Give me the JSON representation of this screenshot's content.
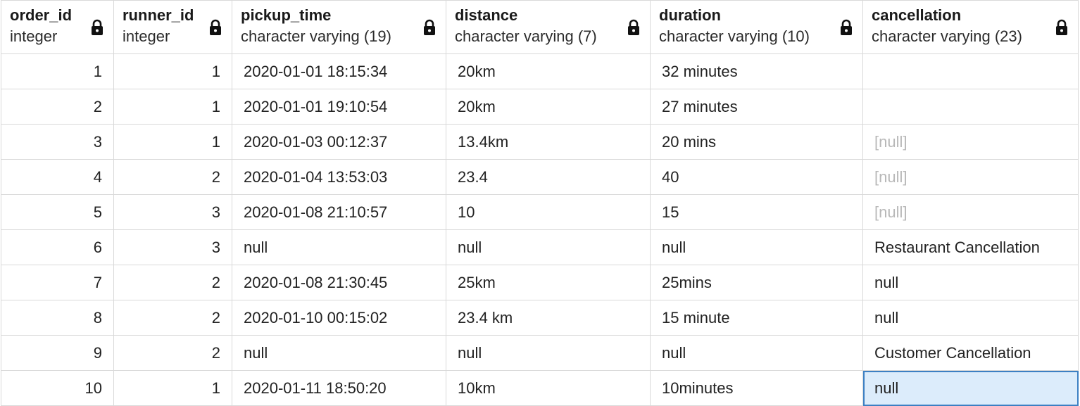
{
  "columns": [
    {
      "name": "order_id",
      "type": "integer"
    },
    {
      "name": "runner_id",
      "type": "integer"
    },
    {
      "name": "pickup_time",
      "type": "character varying (19)"
    },
    {
      "name": "distance",
      "type": "character varying (7)"
    },
    {
      "name": "duration",
      "type": "character varying (10)"
    },
    {
      "name": "cancellation",
      "type": "character varying (23)"
    }
  ],
  "lock_icon": "lock-icon",
  "null_placeholder_color": "#b8b8b8",
  "selection_color": "#dcecfb",
  "rows": [
    {
      "order_id": "1",
      "runner_id": "1",
      "pickup_time": "2020-01-01 18:15:34",
      "distance": "20km",
      "duration": "32 minutes",
      "cancellation": ""
    },
    {
      "order_id": "2",
      "runner_id": "1",
      "pickup_time": "2020-01-01 19:10:54",
      "distance": "20km",
      "duration": "27 minutes",
      "cancellation": ""
    },
    {
      "order_id": "3",
      "runner_id": "1",
      "pickup_time": "2020-01-03 00:12:37",
      "distance": "13.4km",
      "duration": "20 mins",
      "cancellation": "[null]"
    },
    {
      "order_id": "4",
      "runner_id": "2",
      "pickup_time": "2020-01-04 13:53:03",
      "distance": "23.4",
      "duration": "40",
      "cancellation": "[null]"
    },
    {
      "order_id": "5",
      "runner_id": "3",
      "pickup_time": "2020-01-08 21:10:57",
      "distance": "10",
      "duration": "15",
      "cancellation": "[null]"
    },
    {
      "order_id": "6",
      "runner_id": "3",
      "pickup_time": "null",
      "distance": "null",
      "duration": "null",
      "cancellation": "Restaurant Cancellation"
    },
    {
      "order_id": "7",
      "runner_id": "2",
      "pickup_time": "2020-01-08 21:30:45",
      "distance": "25km",
      "duration": "25mins",
      "cancellation": "null"
    },
    {
      "order_id": "8",
      "runner_id": "2",
      "pickup_time": "2020-01-10 00:15:02",
      "distance": "23.4 km",
      "duration": "15 minute",
      "cancellation": "null"
    },
    {
      "order_id": "9",
      "runner_id": "2",
      "pickup_time": "null",
      "distance": "null",
      "duration": "null",
      "cancellation": "Customer Cancellation"
    },
    {
      "order_id": "10",
      "runner_id": "1",
      "pickup_time": "2020-01-11 18:50:20",
      "distance": "10km",
      "duration": "10minutes",
      "cancellation": "null"
    }
  ]
}
